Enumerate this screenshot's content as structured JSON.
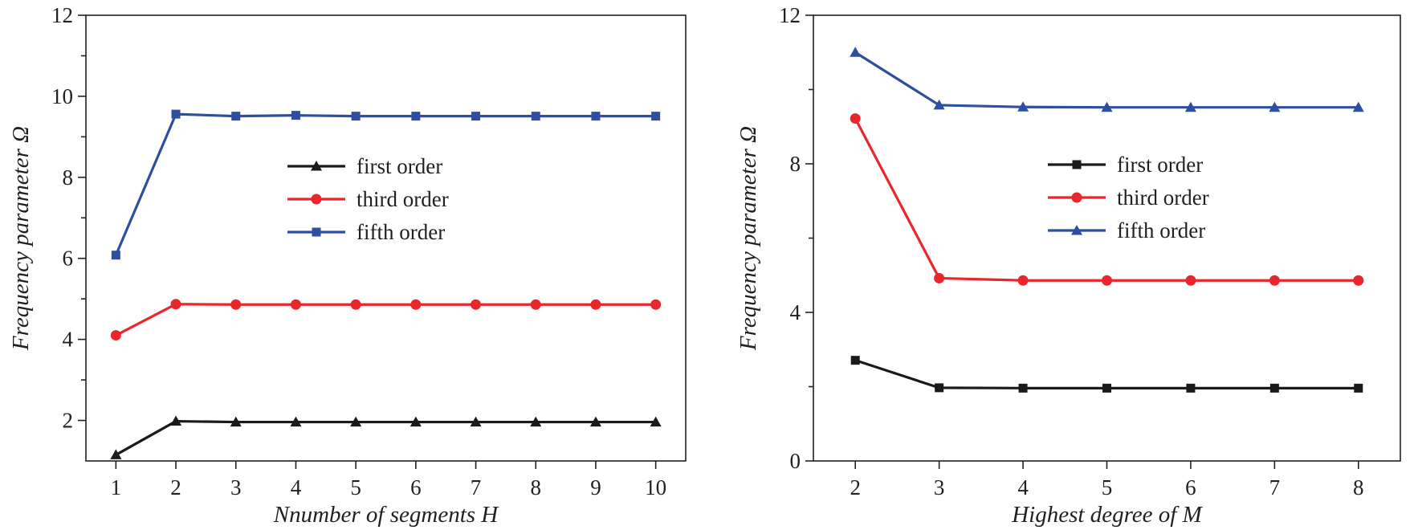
{
  "chart_data": [
    {
      "id": "left",
      "type": "line",
      "xlabel": "Nnumber of segments H",
      "ylabel": "Frequency parameter Ω",
      "xlim": [
        0.5,
        10.5
      ],
      "ylim": [
        1,
        12
      ],
      "x": [
        1,
        2,
        3,
        4,
        5,
        6,
        7,
        8,
        9,
        10
      ],
      "xticks": [
        "1",
        "2",
        "3",
        "4",
        "5",
        "6",
        "7",
        "8",
        "9",
        "10"
      ],
      "yticks": [
        2,
        4,
        6,
        8,
        10,
        12
      ],
      "yticklabels": [
        "2",
        "4",
        "6",
        "8",
        "10",
        "12"
      ],
      "series": [
        {
          "name": "first order",
          "color": "#1a1a1a",
          "marker": "triangle",
          "values": [
            1.15,
            1.98,
            1.96,
            1.96,
            1.96,
            1.96,
            1.96,
            1.96,
            1.96,
            1.96
          ]
        },
        {
          "name": "third order",
          "color": "#e8262c",
          "marker": "circle",
          "values": [
            4.1,
            4.87,
            4.86,
            4.86,
            4.86,
            4.86,
            4.86,
            4.86,
            4.86,
            4.86
          ]
        },
        {
          "name": "fifth order",
          "color": "#2e4f9f",
          "marker": "square",
          "values": [
            6.08,
            9.56,
            9.51,
            9.53,
            9.51,
            9.51,
            9.51,
            9.51,
            9.51,
            9.51
          ]
        }
      ],
      "legend": "center-upper"
    },
    {
      "id": "right",
      "type": "line",
      "xlabel": "Highest degree of M",
      "ylabel": "Frequency parameter Ω",
      "xlim": [
        1.5,
        8.5
      ],
      "ylim": [
        0,
        12
      ],
      "x": [
        2,
        3,
        4,
        5,
        6,
        7,
        8
      ],
      "xticks": [
        "2",
        "3",
        "4",
        "5",
        "6",
        "7",
        "8"
      ],
      "yticks": [
        0,
        4,
        8,
        12
      ],
      "yticklabels": [
        "0",
        "4",
        "8",
        "12"
      ],
      "series": [
        {
          "name": "first order",
          "color": "#1a1a1a",
          "marker": "square",
          "values": [
            2.71,
            1.97,
            1.96,
            1.96,
            1.96,
            1.96,
            1.96
          ]
        },
        {
          "name": "third order",
          "color": "#e8262c",
          "marker": "circle",
          "values": [
            9.22,
            4.92,
            4.86,
            4.86,
            4.86,
            4.86,
            4.86
          ]
        },
        {
          "name": "fifth order",
          "color": "#2e4f9f",
          "marker": "triangle",
          "values": [
            11.0,
            9.58,
            9.53,
            9.52,
            9.52,
            9.52,
            9.52
          ]
        }
      ],
      "legend": "center-upper"
    }
  ]
}
